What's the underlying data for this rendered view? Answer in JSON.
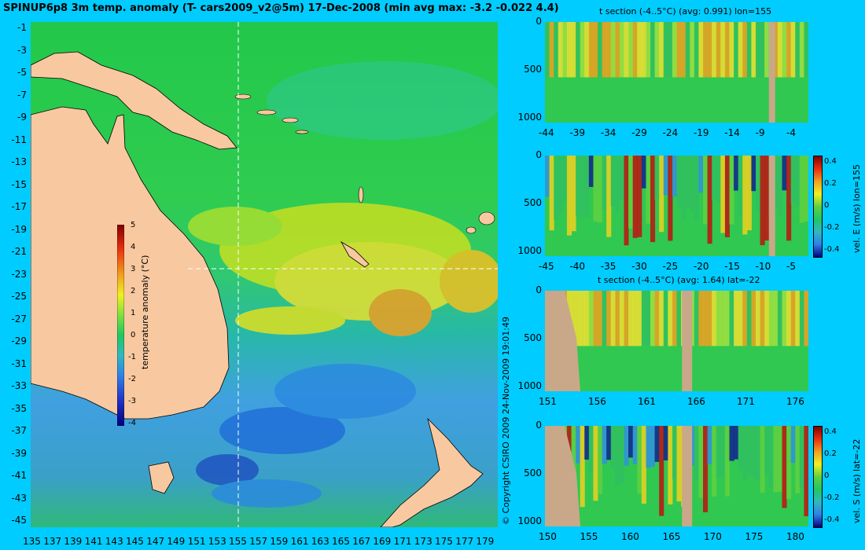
{
  "title": "SPINUP6p8 3m temp. anomaly (T- cars2009_v2@5m) 17-Dec-2008 (min avg max: -3.2 -0.022 4.4)",
  "copyright": "© Copyright CSIRO 2009  24-Nov-2009 19:01:49",
  "colors": {
    "background": "#00ccff",
    "land": "#f8c8a0",
    "section_land": "#c8a888"
  },
  "map": {
    "lon_ticks": [
      "135",
      "137",
      "139",
      "141",
      "143",
      "145",
      "147",
      "149",
      "151",
      "153",
      "155",
      "157",
      "159",
      "161",
      "163",
      "165",
      "167",
      "169",
      "171",
      "173",
      "175",
      "177",
      "179"
    ],
    "lat_ticks": [
      "-1",
      "-3",
      "-5",
      "-7",
      "-9",
      "-11",
      "-13",
      "-15",
      "-17",
      "-19",
      "-21",
      "-23",
      "-25",
      "-27",
      "-29",
      "-31",
      "-33",
      "-35",
      "-37",
      "-39",
      "-41",
      "-43",
      "-45"
    ],
    "colorbar": {
      "label": "temperature anomaly (°C)",
      "ticks": [
        "5",
        "4",
        "3",
        "2",
        "1",
        "0",
        "-1",
        "-2",
        "-3",
        "-4"
      ]
    }
  },
  "panels": [
    {
      "title": "t section (-4..5°C) (avg: 0.991) lon=155",
      "x_ticks": [
        "-44",
        "-39",
        "-34",
        "-29",
        "-24",
        "-19",
        "-14",
        "-9",
        "-4"
      ],
      "y_ticks": [
        "0",
        "500",
        "1000"
      ]
    },
    {
      "title": "",
      "x_ticks": [
        "-45",
        "-40",
        "-35",
        "-30",
        "-25",
        "-20",
        "-15",
        "-10",
        "-5"
      ],
      "y_ticks": [
        "0",
        "500",
        "1000"
      ],
      "colorbar": {
        "label": "vel. E (m/s) lon=155",
        "ticks": [
          "0.4",
          "0.2",
          "0",
          "-0.2",
          "-0.4"
        ]
      }
    },
    {
      "title": "t section (-4..5°C) (avg: 1.64) lat=-22",
      "x_ticks": [
        "151",
        "156",
        "161",
        "166",
        "171",
        "176"
      ],
      "y_ticks": [
        "0",
        "500",
        "1000"
      ]
    },
    {
      "title": "",
      "x_ticks": [
        "150",
        "155",
        "160",
        "165",
        "170",
        "175",
        "180"
      ],
      "y_ticks": [
        "0",
        "500",
        "1000"
      ],
      "colorbar": {
        "label": "vel. S (m/s) lat=-22",
        "ticks": [
          "0.4",
          "0.2",
          "0",
          "-0.2",
          "-0.4"
        ]
      }
    }
  ]
}
